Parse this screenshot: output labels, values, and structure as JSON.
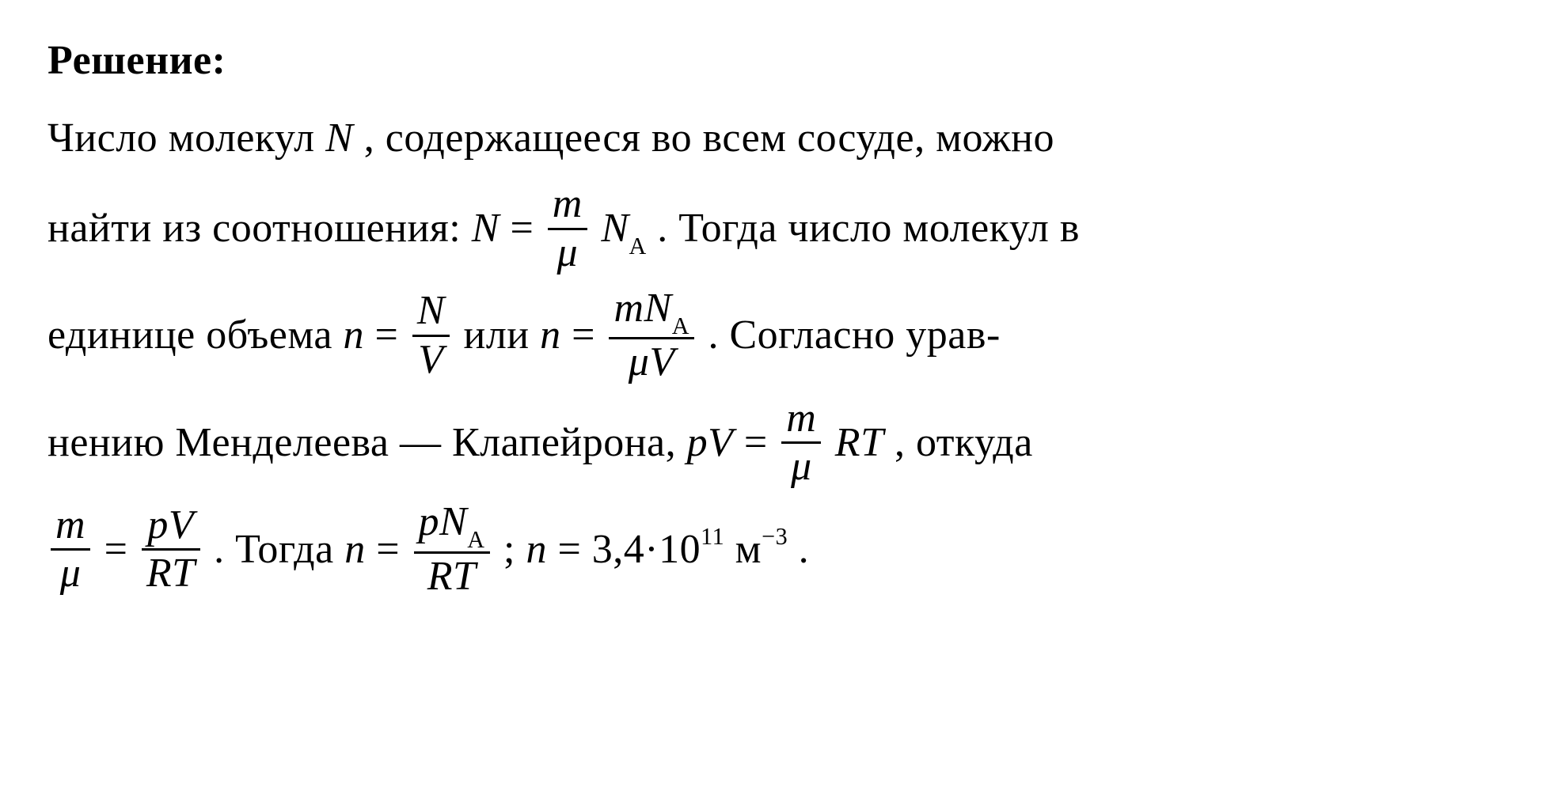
{
  "document": {
    "text_color": "#000000",
    "background_color": "#ffffff",
    "font_family": "Times New Roman",
    "font_size_pt": 39,
    "heading": "Решение:",
    "line1_a": "Число молекул ",
    "sym_N": "N",
    "line1_b": " , содержащееся во всем сосуде, можно",
    "line2_a": "найти из соотношения: ",
    "eq1_lhs": "N",
    "eq1_eq": " = ",
    "eq1_frac_num": "m",
    "eq1_frac_den": "μ",
    "eq1_rhs_sym": "N",
    "eq1_rhs_sub": "A",
    "line2_b": " . Тогда число молекул в",
    "line3_a": "единице  объема   ",
    "eq2_lhs": "n",
    "eq2_eq": " = ",
    "eq2_frac_num": "N",
    "eq2_frac_den": "V",
    "line3_b": "   или   ",
    "eq3_lhs": "n",
    "eq3_eq": " = ",
    "eq3_num_a": "m",
    "eq3_num_b": "N",
    "eq3_num_sub": "A",
    "eq3_den_a": "μ",
    "eq3_den_b": "V",
    "line3_c": " .  Согласно  урав-",
    "line4_a": "нению   Менделеева — Клапейрона,    ",
    "eq4_lhs_a": "p",
    "eq4_lhs_b": "V",
    "eq4_eq": " = ",
    "eq4_frac_num": "m",
    "eq4_frac_den": "μ",
    "eq4_rhs_a": "R",
    "eq4_rhs_b": "T",
    "line4_b": " ,   откуда",
    "eq5_lhs_num": "m",
    "eq5_lhs_den": "μ",
    "eq5_eq": " = ",
    "eq5_rhs_num_a": "p",
    "eq5_rhs_num_b": "V",
    "eq5_rhs_den_a": "R",
    "eq5_rhs_den_b": "T",
    "line5_a": " . Тогда ",
    "eq6_lhs": "n",
    "eq6_eq": " = ",
    "eq6_num_a": "p",
    "eq6_num_b": "N",
    "eq6_num_sub": "A",
    "eq6_den_a": "R",
    "eq6_den_b": "T",
    "line5_b": " ; ",
    "eq7_lhs": "n",
    "eq7_eq": " = ",
    "eq7_val": "3,4·10",
    "eq7_exp": "11",
    "eq7_unit": " м",
    "eq7_unit_exp": "−3",
    "line5_c": "."
  }
}
